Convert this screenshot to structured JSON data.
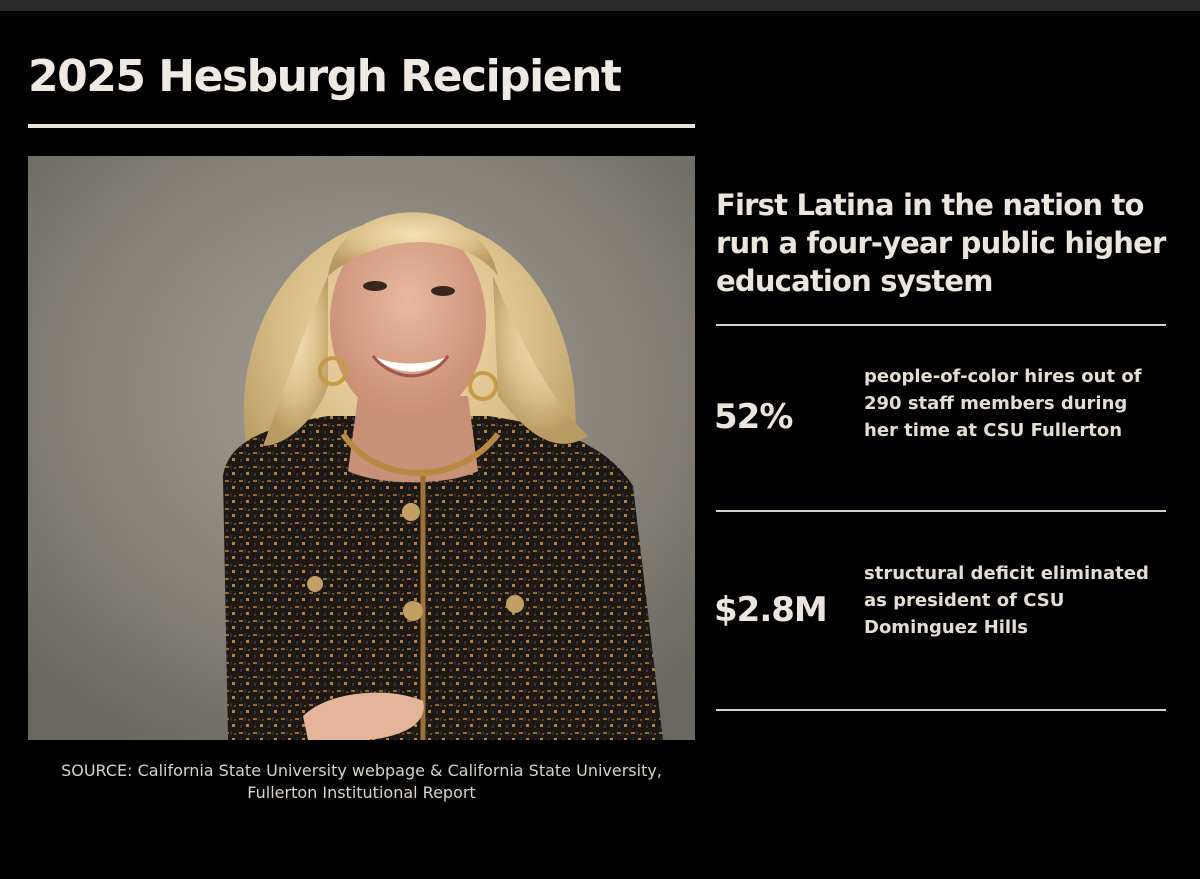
{
  "title": "2025 Hesburgh Recipient",
  "headline": "First Latina in the nation to run a four-year public higher education system",
  "stats": [
    {
      "value": "52%",
      "description": "people-of-color hires out of 290 staff members during her time at CSU Fullerton"
    },
    {
      "value": "$2.8M",
      "description": "structural deficit eliminated as president of CSU Dominguez Hills"
    }
  ],
  "source": "SOURCE: California State University webpage & California State University, Fullerton Institutional Report",
  "colors": {
    "background": "#000000",
    "text": "#ece5db",
    "rule": "#ece4da"
  }
}
